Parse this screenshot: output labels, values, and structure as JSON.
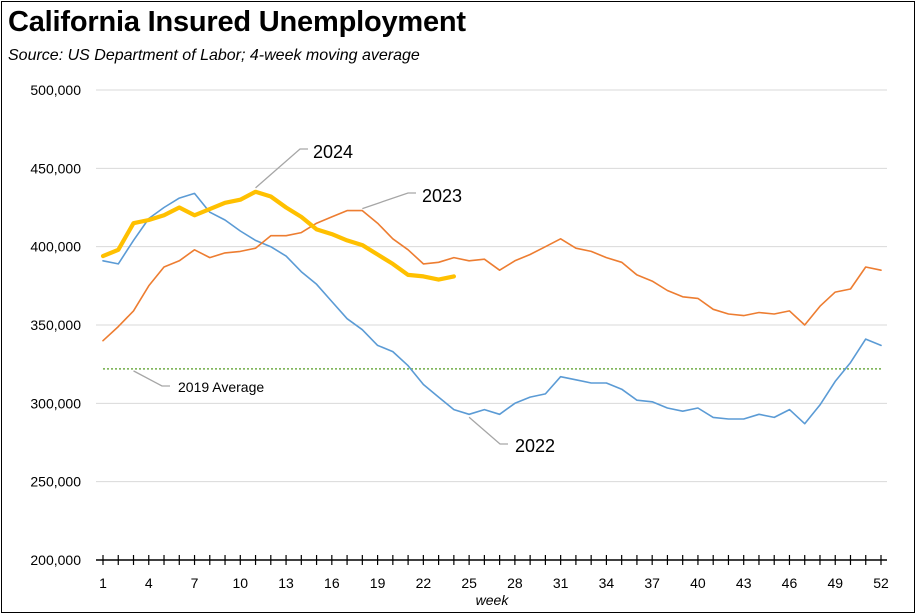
{
  "chart_data": {
    "type": "line",
    "title": "California Insured Unemployment",
    "subtitle": "Source:  US Department of Labor; 4-week moving average",
    "xlabel": "week",
    "ylabel": "",
    "xlim": [
      1,
      52
    ],
    "ylim": [
      200000,
      500000
    ],
    "y_ticks": [
      200000,
      250000,
      300000,
      350000,
      400000,
      450000,
      500000
    ],
    "y_tick_labels": [
      "200,000",
      "250,000",
      "300,000",
      "350,000",
      "400,000",
      "450,000",
      "500,000"
    ],
    "x_ticks": [
      1,
      4,
      7,
      10,
      13,
      16,
      19,
      22,
      25,
      28,
      31,
      34,
      37,
      40,
      43,
      46,
      49,
      52
    ],
    "x_tick_labels": [
      "1",
      "4",
      "7",
      "10",
      "13",
      "16",
      "19",
      "22",
      "25",
      "28",
      "31",
      "34",
      "37",
      "40",
      "43",
      "46",
      "49",
      "52"
    ],
    "grid": "horizontal",
    "reference_line": {
      "name": "2019 Average",
      "value": 322000,
      "color": "#70AD47"
    },
    "series": [
      {
        "name": "2022",
        "color": "#5B9BD5",
        "x": [
          1,
          2,
          3,
          4,
          5,
          6,
          7,
          8,
          9,
          10,
          11,
          12,
          13,
          14,
          15,
          16,
          17,
          18,
          19,
          20,
          21,
          22,
          23,
          24,
          25,
          26,
          27,
          28,
          29,
          30,
          31,
          32,
          33,
          34,
          35,
          36,
          37,
          38,
          39,
          40,
          41,
          42,
          43,
          44,
          45,
          46,
          47,
          48,
          49,
          50,
          51,
          52
        ],
        "values": [
          391000,
          389000,
          404000,
          418000,
          425000,
          431000,
          434000,
          422000,
          417000,
          410000,
          404000,
          400000,
          394000,
          384000,
          376000,
          365000,
          354000,
          347000,
          337000,
          333000,
          324000,
          312000,
          304000,
          296000,
          293000,
          296000,
          293000,
          300000,
          304000,
          306000,
          317000,
          315000,
          313000,
          313000,
          309000,
          302000,
          301000,
          297000,
          295000,
          297000,
          291000,
          290000,
          290000,
          293000,
          291000,
          296000,
          287000,
          299000,
          314000,
          326000,
          341000,
          337000
        ]
      },
      {
        "name": "2023",
        "color": "#ED7D31",
        "x": [
          1,
          2,
          3,
          4,
          5,
          6,
          7,
          8,
          9,
          10,
          11,
          12,
          13,
          14,
          15,
          16,
          17,
          18,
          19,
          20,
          21,
          22,
          23,
          24,
          25,
          26,
          27,
          28,
          29,
          30,
          31,
          32,
          33,
          34,
          35,
          36,
          37,
          38,
          39,
          40,
          41,
          42,
          43,
          44,
          45,
          46,
          47,
          48,
          49,
          50,
          51,
          52
        ],
        "values": [
          340000,
          349000,
          359000,
          375000,
          387000,
          391000,
          398000,
          393000,
          396000,
          397000,
          399000,
          407000,
          407000,
          409000,
          415000,
          419000,
          423000,
          423000,
          415000,
          405000,
          398000,
          389000,
          390000,
          393000,
          391000,
          392000,
          385000,
          391000,
          395000,
          400000,
          405000,
          399000,
          397000,
          393000,
          390000,
          382000,
          378000,
          372000,
          368000,
          367000,
          360000,
          357000,
          356000,
          358000,
          357000,
          359000,
          350000,
          362000,
          371000,
          373000,
          387000,
          385000
        ]
      },
      {
        "name": "2024",
        "color": "#FFC000",
        "x": [
          1,
          2,
          3,
          4,
          5,
          6,
          7,
          8,
          9,
          10,
          11,
          12,
          13,
          14,
          15,
          16,
          17,
          18,
          19,
          20,
          21,
          22,
          23,
          24
        ],
        "values": [
          394000,
          398000,
          415000,
          417000,
          420000,
          425000,
          420000,
          424000,
          428000,
          430000,
          435000,
          432000,
          425000,
          419000,
          411000,
          408000,
          404000,
          401000,
          395000,
          389000,
          382000,
          381000,
          379000,
          381000
        ]
      }
    ],
    "annotations": [
      {
        "text": "2024",
        "series": "2024"
      },
      {
        "text": "2023",
        "series": "2023"
      },
      {
        "text": "2022",
        "series": "2022"
      },
      {
        "text": "2019 Average",
        "series": "2019 Average"
      }
    ]
  }
}
